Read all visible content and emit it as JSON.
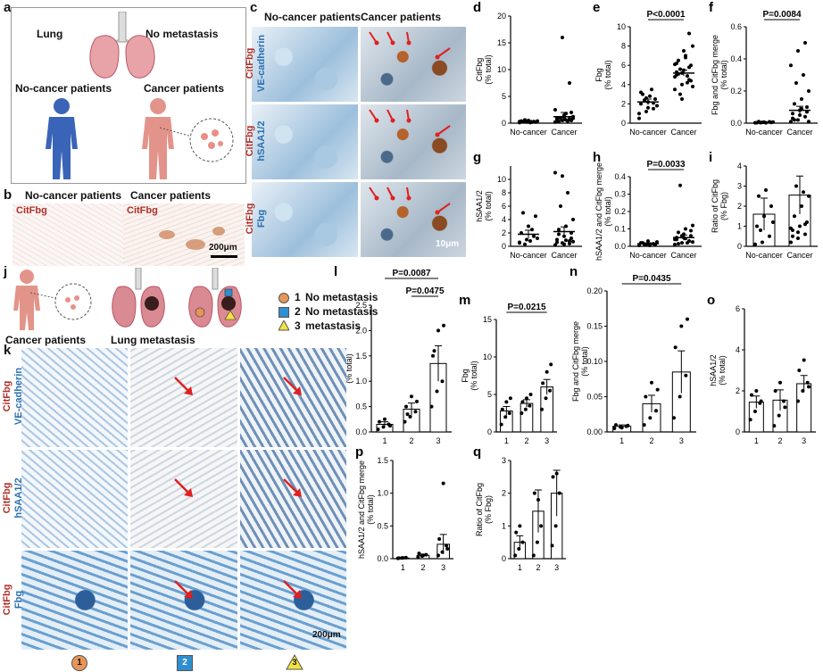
{
  "panels": {
    "a": {
      "label": "a",
      "lung": "Lung",
      "no_metastasis": "No metastasis",
      "no_cancer_patients": "No-cancer patients",
      "cancer_patients": "Cancer patients"
    },
    "b": {
      "label": "b",
      "left_title": "No-cancer patients",
      "right_title": "Cancer patients",
      "stain_left": "CitFbg",
      "stain_right": "CitFbg",
      "scale": "200μm"
    },
    "c": {
      "label": "c",
      "col_left": "No-cancer patients",
      "col_right": "Cancer patients",
      "rows": [
        {
          "red": "CitFbg",
          "blue": "VE-cadherin"
        },
        {
          "red": "CitFbg",
          "blue": "hSAA1/2"
        },
        {
          "red": "CitFbg",
          "blue": "Fbg"
        }
      ],
      "scale": "10μm"
    },
    "j": {
      "label": "j",
      "cancer_patients": "Cancer patients",
      "lung_metastasis": "Lung metastasis",
      "legend": [
        {
          "num": "1",
          "text": "No metastasis",
          "color": "#e8955a"
        },
        {
          "num": "2",
          "text": "No metastasis",
          "color": "#2f8fd0"
        },
        {
          "num": "3",
          "text": "metastasis",
          "color": "#f2e240"
        }
      ]
    },
    "k": {
      "label": "k",
      "rows": [
        {
          "red": "CitFbg",
          "blue": "VE-cadherin"
        },
        {
          "red": "CitFbg",
          "blue": "hSAA1/2"
        },
        {
          "red": "CitFbg",
          "blue": "Fbg"
        }
      ],
      "scale": "200μm",
      "bottom_markers": [
        "1",
        "2",
        "3"
      ]
    }
  },
  "chart_data": [
    {
      "id": "d",
      "type": "scatter",
      "ylabel": "CitFbg\n(% total)",
      "categories": [
        "No-cancer",
        "Cancer"
      ],
      "ylim": [
        0,
        20
      ],
      "yticks": [
        0,
        5,
        10,
        15,
        20
      ],
      "means": [
        0.3,
        1.2
      ],
      "sems": [
        0.2,
        0.8
      ],
      "points": [
        [
          0.1,
          0.2,
          0.3,
          0.4,
          0.5,
          0.2,
          0.3,
          0.1,
          0.4,
          0.6,
          0.2,
          0.3
        ],
        [
          0.2,
          0.5,
          0.8,
          1.0,
          1.5,
          2.0,
          0.3,
          0.6,
          1.2,
          0.9,
          0.4,
          2.5,
          16,
          7.5,
          0.7,
          1.1,
          0.5,
          0.3,
          1.8,
          0.9
        ]
      ],
      "pvalue": ""
    },
    {
      "id": "e",
      "type": "scatter",
      "ylabel": "Fbg\n(% total)",
      "categories": [
        "No-cancer",
        "Cancer"
      ],
      "ylim": [
        0,
        10
      ],
      "yticks": [
        0,
        2,
        4,
        6,
        8,
        10
      ],
      "means": [
        2.2,
        5.2
      ],
      "sems": [
        0.3,
        0.3
      ],
      "points": [
        [
          0.5,
          1.2,
          1.5,
          2.0,
          2.2,
          2.5,
          3.0,
          2.8,
          1.8,
          2.4,
          3.5,
          1.0,
          2.6,
          2.1,
          3.2,
          1.6
        ],
        [
          3.5,
          4.0,
          4.5,
          5.0,
          5.5,
          6.0,
          6.5,
          7.0,
          8.0,
          3.0,
          4.2,
          4.8,
          5.2,
          5.8,
          6.2,
          7.5,
          4.4,
          5.1,
          6.8,
          3.8,
          5.6,
          4.9,
          6.1,
          2.5,
          9.3,
          5.3
        ]
      ],
      "pvalue": "P<0.0001"
    },
    {
      "id": "f",
      "type": "scatter",
      "ylabel": "Fbg and CitFbg merge\n(% total)",
      "categories": [
        "No-cancer",
        "Cancer"
      ],
      "ylim": [
        0,
        0.6
      ],
      "yticks": [
        0.0,
        0.2,
        0.4,
        0.6
      ],
      "means": [
        0.005,
        0.08
      ],
      "sems": [
        0.003,
        0.025
      ],
      "points": [
        [
          0.002,
          0.005,
          0.008,
          0.003,
          0.006,
          0.004,
          0.01,
          0.002,
          0.007,
          0.003
        ],
        [
          0.01,
          0.02,
          0.04,
          0.06,
          0.08,
          0.1,
          0.12,
          0.15,
          0.2,
          0.25,
          0.3,
          0.36,
          0.45,
          0.5,
          0.03,
          0.05,
          0.07,
          0.02,
          0.09,
          0.01
        ]
      ],
      "pvalue": "P=0.0084"
    },
    {
      "id": "g",
      "type": "scatter",
      "ylabel": "hSAA1/2\n(% total)",
      "categories": [
        "No-cancer",
        "Cancer"
      ],
      "ylim": [
        0,
        12
      ],
      "yticks": [
        0,
        2,
        4,
        6,
        8,
        10
      ],
      "means": [
        1.8,
        2.2
      ],
      "sems": [
        0.6,
        0.7
      ],
      "points": [
        [
          0.5,
          1.0,
          1.5,
          2.0,
          3.0,
          4.5,
          5.0,
          0.8,
          1.2,
          0.3,
          2.5,
          0.6
        ],
        [
          0.2,
          0.5,
          0.8,
          1.0,
          1.5,
          2.0,
          2.5,
          3.0,
          4.0,
          6.0,
          8.0,
          11.0,
          10.5,
          0.4,
          0.6,
          0.3,
          1.2,
          1.8,
          0.9,
          0.7
        ]
      ],
      "pvalue": ""
    },
    {
      "id": "h",
      "type": "scatter",
      "ylabel": "hSAA1/2 and CitFbg merge\n(% total)",
      "categories": [
        "No-cancer",
        "Cancer"
      ],
      "ylim": [
        0,
        0.4
      ],
      "yticks": [
        0.0,
        0.1,
        0.2,
        0.3,
        0.4
      ],
      "means": [
        0.015,
        0.05
      ],
      "sems": [
        0.005,
        0.015
      ],
      "points": [
        [
          0.005,
          0.01,
          0.015,
          0.02,
          0.03,
          0.01,
          0.02,
          0.005,
          0.025,
          0.01
        ],
        [
          0.01,
          0.02,
          0.03,
          0.04,
          0.05,
          0.06,
          0.08,
          0.1,
          0.12,
          0.35,
          0.02,
          0.04,
          0.06,
          0.03,
          0.05,
          0.07,
          0.09,
          0.015,
          0.045,
          0.025
        ]
      ],
      "pvalue": "P=0.0033"
    },
    {
      "id": "i",
      "type": "bar",
      "ylabel": "Ratio of CitFbg\n(% Fbg)",
      "categories": [
        "No-cancer",
        "Cancer"
      ],
      "ylim": [
        0,
        4
      ],
      "yticks": [
        0,
        1,
        2,
        3,
        4
      ],
      "means": [
        1.6,
        2.55
      ],
      "sems": [
        0.8,
        0.95
      ],
      "points": [
        [
          0.1,
          0.2,
          0.5,
          1.0,
          1.5,
          2.0,
          2.5,
          2.8,
          1.2,
          0.8
        ],
        [
          0.2,
          0.4,
          0.6,
          0.8,
          1.0,
          1.2,
          1.5,
          2.0,
          2.5,
          3.0,
          2.7,
          0.9,
          0.7,
          1.1,
          0.5
        ]
      ],
      "pvalue": ""
    },
    {
      "id": "l",
      "type": "bar",
      "ylabel": "CitFbg\n(% total)",
      "categories": [
        "1",
        "2",
        "3"
      ],
      "ylim": [
        0,
        2.5
      ],
      "yticks": [
        0.0,
        0.5,
        1.0,
        1.5,
        2.0,
        2.5
      ],
      "means": [
        0.15,
        0.45,
        1.35
      ],
      "sems": [
        0.05,
        0.12,
        0.35
      ],
      "points": [
        [
          0.05,
          0.1,
          0.15,
          0.2,
          0.25,
          0.12
        ],
        [
          0.2,
          0.3,
          0.4,
          0.5,
          0.7,
          0.6,
          0.35
        ],
        [
          0.5,
          0.8,
          1.0,
          1.5,
          2.0,
          2.1,
          1.6
        ]
      ],
      "pvalue": "",
      "pvalues": [
        "P=0.0087",
        "P=0.0475"
      ]
    },
    {
      "id": "m",
      "type": "bar",
      "ylabel": "Fbg\n(% total)",
      "categories": [
        "1",
        "2",
        "3"
      ],
      "ylim": [
        0,
        15
      ],
      "yticks": [
        0,
        5,
        10,
        15
      ],
      "means": [
        2.8,
        3.8,
        6.0
      ],
      "sems": [
        0.6,
        0.5,
        1.0
      ],
      "points": [
        [
          1.0,
          2.0,
          2.5,
          3.0,
          4.0,
          4.5
        ],
        [
          2.5,
          3.0,
          3.5,
          4.0,
          4.5,
          5.0
        ],
        [
          3.0,
          4.5,
          5.5,
          6.5,
          8.0,
          9.0
        ]
      ],
      "pvalue": "P=0.0215"
    },
    {
      "id": "n",
      "type": "bar",
      "ylabel": "Fbg and CitFbg merge\n(% total)",
      "categories": [
        "1",
        "2",
        "3"
      ],
      "ylim": [
        0,
        0.2
      ],
      "yticks": [
        0.0,
        0.05,
        0.1,
        0.15,
        0.2
      ],
      "means": [
        0.008,
        0.04,
        0.085
      ],
      "sems": [
        0.002,
        0.012,
        0.03
      ],
      "points": [
        [
          0.005,
          0.007,
          0.008,
          0.01,
          0.006,
          0.009
        ],
        [
          0.01,
          0.02,
          0.03,
          0.05,
          0.07,
          0.06
        ],
        [
          0.02,
          0.05,
          0.08,
          0.12,
          0.15,
          0.16
        ]
      ],
      "pvalue": "P=0.0435"
    },
    {
      "id": "o",
      "type": "bar",
      "ylabel": "hSAA1/2\n(% total)",
      "categories": [
        "1",
        "2",
        "3"
      ],
      "ylim": [
        0,
        6
      ],
      "yticks": [
        0,
        2,
        4,
        6
      ],
      "means": [
        1.45,
        1.55,
        2.35
      ],
      "sems": [
        0.3,
        0.5,
        0.4
      ],
      "points": [
        [
          0.6,
          1.0,
          1.4,
          1.8,
          2.0,
          1.5
        ],
        [
          0.3,
          0.8,
          1.5,
          2.0,
          2.4,
          1.2
        ],
        [
          1.5,
          2.0,
          2.4,
          3.0,
          3.5,
          2.2
        ]
      ],
      "pvalue": ""
    },
    {
      "id": "p",
      "type": "bar",
      "ylabel": "hSAA1/2 and CitFbg merge\n(% total)",
      "categories": [
        "1",
        "2",
        "3"
      ],
      "ylim": [
        0,
        1.5
      ],
      "yticks": [
        0.0,
        0.5,
        1.0,
        1.5
      ],
      "means": [
        0.01,
        0.05,
        0.22
      ],
      "sems": [
        0.005,
        0.02,
        0.15
      ],
      "points": [
        [
          0.005,
          0.01,
          0.015,
          0.008,
          0.012
        ],
        [
          0.02,
          0.04,
          0.06,
          0.08,
          0.05
        ],
        [
          0.05,
          0.1,
          0.2,
          0.3,
          1.15,
          0.15
        ]
      ],
      "pvalue": ""
    },
    {
      "id": "q",
      "type": "bar",
      "ylabel": "Ratio of CitFbg\n(% Fbg)",
      "categories": [
        "1",
        "2",
        "3"
      ],
      "ylim": [
        0,
        3
      ],
      "yticks": [
        0,
        1,
        2,
        3
      ],
      "means": [
        0.5,
        1.45,
        2.0
      ],
      "sems": [
        0.2,
        0.65,
        0.7
      ],
      "points": [
        [
          0.1,
          0.3,
          0.5,
          0.8,
          1.0
        ],
        [
          0.1,
          0.5,
          1.0,
          2.0,
          1.8
        ],
        [
          0.4,
          1.0,
          2.0,
          2.5,
          2.6
        ]
      ],
      "pvalue": ""
    }
  ]
}
